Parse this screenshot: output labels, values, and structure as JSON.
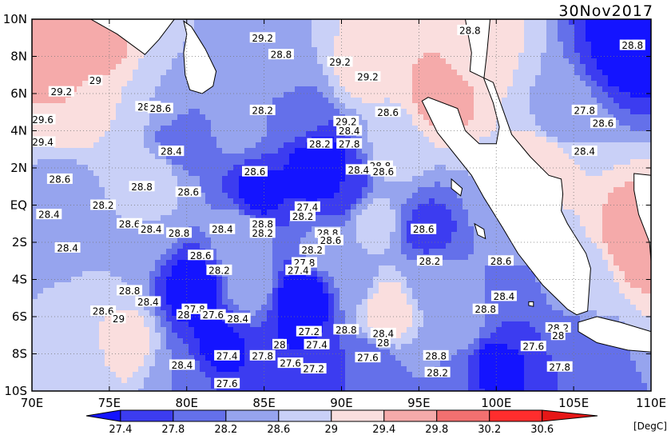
{
  "map": {
    "date_label": "30Nov2017",
    "unit_label": "[DegC]",
    "lon_ticks": [
      "70E",
      "75E",
      "80E",
      "85E",
      "90E",
      "95E",
      "100E",
      "105E",
      "110E"
    ],
    "lat_ticks": [
      "10N",
      "8N",
      "6N",
      "4N",
      "2N",
      "EQ",
      "2S",
      "4S",
      "6S",
      "8S",
      "10S"
    ],
    "lon_range": [
      70,
      110
    ],
    "lat_range": [
      -10,
      10
    ],
    "contour_labels": [
      {
        "text": "29.2",
        "lon": 91.7,
        "lat": 6.9
      },
      {
        "text": "28.8",
        "lon": 98.3,
        "lat": 9.4
      },
      {
        "text": "29.2",
        "lon": 84.9,
        "lat": 9.0
      },
      {
        "text": "28.8",
        "lon": 86.1,
        "lat": 8.1
      },
      {
        "text": "29.2",
        "lon": 89.9,
        "lat": 7.7
      },
      {
        "text": "28.8",
        "lon": 108.8,
        "lat": 8.6
      },
      {
        "text": "29",
        "lon": 74.1,
        "lat": 6.7
      },
      {
        "text": "29.2",
        "lon": 71.9,
        "lat": 6.1
      },
      {
        "text": "28.8",
        "lon": 77.5,
        "lat": 5.3
      },
      {
        "text": "28.6",
        "lon": 78.3,
        "lat": 5.2
      },
      {
        "text": "28.2",
        "lon": 84.9,
        "lat": 5.1
      },
      {
        "text": "28.6",
        "lon": 93.0,
        "lat": 5.0
      },
      {
        "text": "27.8",
        "lon": 105.7,
        "lat": 5.1
      },
      {
        "text": "28.6",
        "lon": 106.9,
        "lat": 4.4
      },
      {
        "text": "29.6",
        "lon": 70.7,
        "lat": 4.6
      },
      {
        "text": "29.2",
        "lon": 90.3,
        "lat": 4.5
      },
      {
        "text": "28.4",
        "lon": 90.5,
        "lat": 4.0
      },
      {
        "text": "29.4",
        "lon": 70.7,
        "lat": 3.4
      },
      {
        "text": "28.2",
        "lon": 88.6,
        "lat": 3.3
      },
      {
        "text": "27.8",
        "lon": 90.5,
        "lat": 3.3
      },
      {
        "text": "28.4",
        "lon": 105.7,
        "lat": 2.9
      },
      {
        "text": "28.4",
        "lon": 79.0,
        "lat": 2.9
      },
      {
        "text": "28.8",
        "lon": 92.5,
        "lat": 2.1
      },
      {
        "text": "28.4",
        "lon": 91.1,
        "lat": 1.9
      },
      {
        "text": "28.6",
        "lon": 92.7,
        "lat": 1.8
      },
      {
        "text": "28.6",
        "lon": 84.4,
        "lat": 1.8
      },
      {
        "text": "28.6",
        "lon": 71.8,
        "lat": 1.4
      },
      {
        "text": "28.8",
        "lon": 77.1,
        "lat": 1.0
      },
      {
        "text": "28.6",
        "lon": 80.1,
        "lat": 0.7
      },
      {
        "text": "28.2",
        "lon": 74.6,
        "lat": -0.0
      },
      {
        "text": "27.4",
        "lon": 87.8,
        "lat": -0.1
      },
      {
        "text": "28.4",
        "lon": 71.1,
        "lat": -0.5
      },
      {
        "text": "28.2",
        "lon": 87.5,
        "lat": -0.6
      },
      {
        "text": "28.6",
        "lon": 76.3,
        "lat": -1.0
      },
      {
        "text": "28.8",
        "lon": 84.9,
        "lat": -1.0
      },
      {
        "text": "28.4",
        "lon": 77.7,
        "lat": -1.3
      },
      {
        "text": "28.8",
        "lon": 79.5,
        "lat": -1.5
      },
      {
        "text": "28.4",
        "lon": 82.3,
        "lat": -1.3
      },
      {
        "text": "28.2",
        "lon": 84.9,
        "lat": -1.5
      },
      {
        "text": "28.8",
        "lon": 89.1,
        "lat": -1.5
      },
      {
        "text": "28.6",
        "lon": 89.3,
        "lat": -1.9
      },
      {
        "text": "28.6",
        "lon": 95.3,
        "lat": -1.3
      },
      {
        "text": "28.4",
        "lon": 72.3,
        "lat": -2.3
      },
      {
        "text": "28.2",
        "lon": 88.1,
        "lat": -2.4
      },
      {
        "text": "28.6",
        "lon": 80.9,
        "lat": -2.7
      },
      {
        "text": "27.8",
        "lon": 87.6,
        "lat": -3.1
      },
      {
        "text": "28.2",
        "lon": 95.7,
        "lat": -3.0
      },
      {
        "text": "28.6",
        "lon": 100.3,
        "lat": -3.0
      },
      {
        "text": "28.2",
        "lon": 82.1,
        "lat": -3.5
      },
      {
        "text": "27.4",
        "lon": 87.2,
        "lat": -3.5
      },
      {
        "text": "28.8",
        "lon": 76.3,
        "lat": -4.6
      },
      {
        "text": "28.4",
        "lon": 77.5,
        "lat": -5.2
      },
      {
        "text": "28.4",
        "lon": 100.5,
        "lat": -4.9
      },
      {
        "text": "28.6",
        "lon": 74.6,
        "lat": -5.7
      },
      {
        "text": "27.8",
        "lon": 80.5,
        "lat": -5.6
      },
      {
        "text": "27.6",
        "lon": 81.7,
        "lat": -5.9
      },
      {
        "text": "28",
        "lon": 79.8,
        "lat": -5.9
      },
      {
        "text": "28.4",
        "lon": 83.3,
        "lat": -6.1
      },
      {
        "text": "28.8",
        "lon": 99.3,
        "lat": -5.6
      },
      {
        "text": "29",
        "lon": 75.6,
        "lat": -6.1
      },
      {
        "text": "28.2",
        "lon": 104.0,
        "lat": -6.6
      },
      {
        "text": "27.2",
        "lon": 87.9,
        "lat": -6.8
      },
      {
        "text": "28.8",
        "lon": 90.3,
        "lat": -6.7
      },
      {
        "text": "28.4",
        "lon": 92.7,
        "lat": -6.9
      },
      {
        "text": "28",
        "lon": 104.0,
        "lat": -7.0
      },
      {
        "text": "28",
        "lon": 92.7,
        "lat": -7.4
      },
      {
        "text": "28",
        "lon": 86.0,
        "lat": -7.5
      },
      {
        "text": "27.4",
        "lon": 88.4,
        "lat": -7.5
      },
      {
        "text": "27.6",
        "lon": 102.4,
        "lat": -7.6
      },
      {
        "text": "27.4",
        "lon": 82.6,
        "lat": -8.1
      },
      {
        "text": "27.8",
        "lon": 84.9,
        "lat": -8.1
      },
      {
        "text": "27.6",
        "lon": 86.7,
        "lat": -8.5
      },
      {
        "text": "27.2",
        "lon": 88.2,
        "lat": -8.8
      },
      {
        "text": "27.6",
        "lon": 91.7,
        "lat": -8.2
      },
      {
        "text": "28.8",
        "lon": 96.1,
        "lat": -8.1
      },
      {
        "text": "28.2",
        "lon": 96.2,
        "lat": -9.0
      },
      {
        "text": "27.8",
        "lon": 104.1,
        "lat": -8.7
      },
      {
        "text": "28.4",
        "lon": 79.7,
        "lat": -8.6
      },
      {
        "text": "27.6",
        "lon": 82.6,
        "lat": -9.6
      }
    ]
  },
  "colorbar": {
    "levels": [
      "27.4",
      "27.8",
      "28.2",
      "28.6",
      "29",
      "29.4",
      "29.8",
      "30.2",
      "30.6"
    ],
    "colors": [
      "#1414ff",
      "#3c3cf0",
      "#6470ea",
      "#96a4ee",
      "#c9d0f7",
      "#fadede",
      "#f5aaaa",
      "#f27070",
      "#ff2d2d",
      "#e61717"
    ],
    "bin_values": [
      27.2,
      27.6,
      28.0,
      28.4,
      28.8,
      29.2,
      29.6,
      30.0,
      30.4,
      30.8
    ]
  },
  "sst_anchors": [
    {
      "lon": 71.5,
      "lat": 8.0,
      "v": 29.6
    },
    {
      "lon": 74.5,
      "lat": 8.5,
      "v": 29.5
    },
    {
      "lon": 72.5,
      "lat": 5.5,
      "v": 29.4
    },
    {
      "lon": 75.5,
      "lat": 4.5,
      "v": 29.0
    },
    {
      "lon": 78.5,
      "lat": 5.5,
      "v": 28.6
    },
    {
      "lon": 79.5,
      "lat": 3.5,
      "v": 27.8
    },
    {
      "lon": 78.0,
      "lat": 1.5,
      "v": 28.8
    },
    {
      "lon": 72.0,
      "lat": 0.5,
      "v": 28.4
    },
    {
      "lon": 77.0,
      "lat": -1.0,
      "v": 28.6
    },
    {
      "lon": 84.5,
      "lat": 0.5,
      "v": 27.2
    },
    {
      "lon": 88.5,
      "lat": 2.0,
      "v": 27.0
    },
    {
      "lon": 90.0,
      "lat": 1.0,
      "v": 27.4
    },
    {
      "lon": 87.0,
      "lat": 5.0,
      "v": 28.0
    },
    {
      "lon": 86.0,
      "lat": 7.5,
      "v": 28.6
    },
    {
      "lon": 91.5,
      "lat": 7.5,
      "v": 29.2
    },
    {
      "lon": 96.5,
      "lat": 6.0,
      "v": 29.6
    },
    {
      "lon": 98.5,
      "lat": 8.5,
      "v": 29.2
    },
    {
      "lon": 93.5,
      "lat": 3.0,
      "v": 28.8
    },
    {
      "lon": 83.5,
      "lat": 4.5,
      "v": 28.4
    },
    {
      "lon": 83.5,
      "lat": -1.5,
      "v": 28.6
    },
    {
      "lon": 80.5,
      "lat": -4.5,
      "v": 27.1
    },
    {
      "lon": 82.0,
      "lat": -7.5,
      "v": 27.3
    },
    {
      "lon": 87.5,
      "lat": -5.0,
      "v": 26.9
    },
    {
      "lon": 87.5,
      "lat": -8.0,
      "v": 27.4
    },
    {
      "lon": 91.0,
      "lat": -4.0,
      "v": 28.4
    },
    {
      "lon": 93.0,
      "lat": -5.5,
      "v": 29.4
    },
    {
      "lon": 95.5,
      "lat": -1.5,
      "v": 27.6
    },
    {
      "lon": 96.5,
      "lat": -8.5,
      "v": 28.2
    },
    {
      "lon": 100.0,
      "lat": -8.5,
      "v": 27.2
    },
    {
      "lon": 100.5,
      "lat": -6.0,
      "v": 27.8
    },
    {
      "lon": 105.0,
      "lat": -8.0,
      "v": 27.8
    },
    {
      "lon": 109.0,
      "lat": -2.0,
      "v": 29.8
    },
    {
      "lon": 104.0,
      "lat": 4.5,
      "v": 28.4
    },
    {
      "lon": 108.5,
      "lat": 8.5,
      "v": 27.2
    },
    {
      "lon": 103.0,
      "lat": 2.5,
      "v": 29.4
    },
    {
      "lon": 106.0,
      "lat": -4.0,
      "v": 28.8
    },
    {
      "lon": 74.0,
      "lat": -3.0,
      "v": 28.6
    },
    {
      "lon": 76.0,
      "lat": -7.5,
      "v": 29.2
    },
    {
      "lon": 73.0,
      "lat": -9.0,
      "v": 28.6
    },
    {
      "lon": 79.5,
      "lat": -9.5,
      "v": 28.2
    },
    {
      "lon": 91.5,
      "lat": -9.0,
      "v": 27.8
    },
    {
      "lon": 80.5,
      "lat": 8.5,
      "v": 28.6
    },
    {
      "lon": 92.0,
      "lat": -1.0,
      "v": 28.8
    },
    {
      "lon": 101.0,
      "lat": 0.5,
      "v": 28.6
    },
    {
      "lon": 89.0,
      "lat": -2.5,
      "v": 28.4
    },
    {
      "lon": 84.0,
      "lat": -4.0,
      "v": 28.6
    },
    {
      "lon": 95.5,
      "lat": -4.0,
      "v": 28.4
    },
    {
      "lon": 98.0,
      "lat": -6.0,
      "v": 28.6
    }
  ],
  "land": [
    {
      "name": "india",
      "pts": [
        [
          70,
          10
        ],
        [
          73.8,
          10
        ],
        [
          75.5,
          9.2
        ],
        [
          77.3,
          8.1
        ],
        [
          78.2,
          8.9
        ],
        [
          79.2,
          10
        ],
        [
          70,
          10
        ]
      ]
    },
    {
      "name": "sri-lanka",
      "pts": [
        [
          79.8,
          9.9
        ],
        [
          80.3,
          9.6
        ],
        [
          81.2,
          8.4
        ],
        [
          81.9,
          7.2
        ],
        [
          81.7,
          6.4
        ],
        [
          81.0,
          6.0
        ],
        [
          80.2,
          6.2
        ],
        [
          79.9,
          7.0
        ],
        [
          79.8,
          8.2
        ],
        [
          80.0,
          9.2
        ]
      ]
    },
    {
      "name": "sumatra-malaysia",
      "pts": [
        [
          98.0,
          10
        ],
        [
          98.4,
          8.2
        ],
        [
          98.3,
          7.2
        ],
        [
          99.8,
          6.6
        ],
        [
          100.4,
          5.2
        ],
        [
          101.0,
          3.8
        ],
        [
          102.2,
          2.6
        ],
        [
          103.4,
          1.6
        ],
        [
          104.2,
          1.4
        ],
        [
          104.3,
          0.6
        ],
        [
          104.2,
          -0.3
        ],
        [
          104.6,
          -1.0
        ],
        [
          105.8,
          -2.6
        ],
        [
          106.1,
          -3.4
        ],
        [
          105.9,
          -5.7
        ],
        [
          105.2,
          -5.9
        ],
        [
          104.6,
          -5.6
        ],
        [
          103.0,
          -4.3
        ],
        [
          101.4,
          -2.6
        ],
        [
          100.4,
          -1.2
        ],
        [
          99.2,
          0.4
        ],
        [
          98.4,
          1.6
        ],
        [
          96.2,
          3.9
        ],
        [
          95.2,
          5.6
        ],
        [
          95.6,
          5.8
        ],
        [
          97.5,
          5.2
        ],
        [
          98.0,
          4.0
        ],
        [
          98.9,
          3.3
        ],
        [
          100.0,
          3.3
        ],
        [
          100.2,
          4.2
        ],
        [
          99.8,
          5.5
        ],
        [
          99.2,
          6.8
        ],
        [
          99.4,
          8.2
        ],
        [
          99.6,
          10
        ]
      ]
    },
    {
      "name": "java",
      "pts": [
        [
          105.3,
          -6.3
        ],
        [
          106.5,
          -6.0
        ],
        [
          108.0,
          -6.3
        ],
        [
          110,
          -6.8
        ],
        [
          110,
          -7.9
        ],
        [
          108.5,
          -7.8
        ],
        [
          106.5,
          -7.4
        ],
        [
          105.3,
          -6.8
        ]
      ]
    },
    {
      "name": "borneo",
      "pts": [
        [
          108.9,
          1.7
        ],
        [
          110,
          1.6
        ],
        [
          110,
          -3.0
        ],
        [
          109.9,
          -2.0
        ],
        [
          109.2,
          -0.5
        ],
        [
          108.9,
          0.8
        ]
      ]
    },
    {
      "name": "enggano",
      "pts": [
        [
          102.1,
          -5.2
        ],
        [
          102.4,
          -5.2
        ],
        [
          102.4,
          -5.45
        ],
        [
          102.1,
          -5.4
        ]
      ]
    },
    {
      "name": "siberut",
      "pts": [
        [
          98.6,
          -1.0
        ],
        [
          99.2,
          -1.3
        ],
        [
          99.3,
          -1.8
        ],
        [
          98.8,
          -1.6
        ]
      ]
    },
    {
      "name": "nias",
      "pts": [
        [
          97.1,
          1.4
        ],
        [
          97.8,
          0.9
        ],
        [
          97.7,
          0.5
        ],
        [
          97.1,
          0.9
        ]
      ]
    }
  ]
}
